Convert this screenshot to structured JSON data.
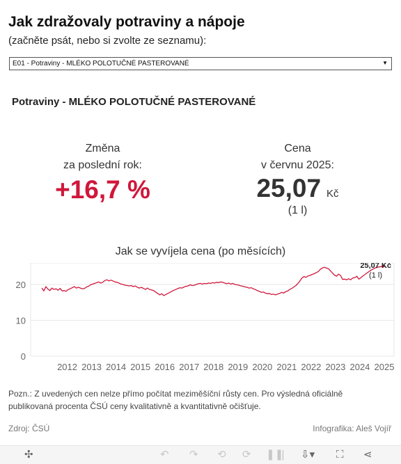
{
  "header": {
    "title": "Jak zdražovaly potraviny a nápoje",
    "subtitle": "(začněte psát, nebo si zvolte ze seznamu):"
  },
  "selector": {
    "value": "E01 - Potraviny - MLÉKO POLOTUČNÉ PASTEROVANÉ",
    "icon": "dropdown-arrow-icon"
  },
  "item_title": "Potraviny - MLÉKO POLOTUČNÉ PASTEROVANÉ",
  "kpi": {
    "change_label_1": "Změna",
    "change_label_2": "za poslední rok:",
    "change_value": "+16,7 %",
    "price_label_1": "Cena",
    "price_label_2": "v červnu 2025:",
    "price_value": "25,07",
    "price_unit": "Kč",
    "price_qty": "(1 l)"
  },
  "colors": {
    "accent": "#d0173b",
    "line": "#d0173b",
    "grid": "#e8e8e8"
  },
  "chart_title": "Jak se vyvíjela cena (po měsících)",
  "chart_data": {
    "type": "line",
    "title": "Jak se vyvíjela cena (po měsících)",
    "xlabel": "",
    "ylabel": "",
    "x_ticks": [
      "2012",
      "2013",
      "2014",
      "2015",
      "2016",
      "2017",
      "2018",
      "2019",
      "2020",
      "2021",
      "2022",
      "2023",
      "2024",
      "2025"
    ],
    "y_ticks": [
      0,
      10,
      20
    ],
    "ylim": [
      0,
      26
    ],
    "grid": "horizontal",
    "series": [
      {
        "points": [
          [
            "2011-06",
            19.0
          ],
          [
            "2011-07",
            18.2
          ],
          [
            "2011-08",
            19.4
          ],
          [
            "2011-09",
            18.7
          ],
          [
            "2011-10",
            18.3
          ],
          [
            "2011-11",
            19.0
          ],
          [
            "2011-12",
            18.6
          ],
          [
            "2012-01",
            18.8
          ],
          [
            "2012-02",
            18.4
          ],
          [
            "2012-03",
            18.9
          ],
          [
            "2012-04",
            18.2
          ],
          [
            "2012-05",
            18.3
          ],
          [
            "2012-06",
            18.1
          ],
          [
            "2012-07",
            18.6
          ],
          [
            "2012-08",
            18.8
          ],
          [
            "2012-09",
            19.1
          ],
          [
            "2012-10",
            19.4
          ],
          [
            "2012-11",
            19.0
          ],
          [
            "2012-12",
            19.2
          ],
          [
            "2013-01",
            19.0
          ],
          [
            "2013-02",
            18.8
          ],
          [
            "2013-03",
            18.9
          ],
          [
            "2013-04",
            19.3
          ],
          [
            "2013-05",
            19.5
          ],
          [
            "2013-06",
            19.9
          ],
          [
            "2013-07",
            20.1
          ],
          [
            "2013-08",
            20.3
          ],
          [
            "2013-09",
            20.5
          ],
          [
            "2013-10",
            20.7
          ],
          [
            "2013-11",
            20.4
          ],
          [
            "2013-12",
            20.6
          ],
          [
            "2014-01",
            21.1
          ],
          [
            "2014-02",
            21.3
          ],
          [
            "2014-03",
            21.0
          ],
          [
            "2014-04",
            21.2
          ],
          [
            "2014-05",
            21.0
          ],
          [
            "2014-06",
            20.7
          ],
          [
            "2014-07",
            20.6
          ],
          [
            "2014-08",
            20.4
          ],
          [
            "2014-09",
            20.1
          ],
          [
            "2014-10",
            20.0
          ],
          [
            "2014-11",
            19.8
          ],
          [
            "2014-12",
            19.7
          ],
          [
            "2015-01",
            19.6
          ],
          [
            "2015-02",
            19.7
          ],
          [
            "2015-03",
            19.4
          ],
          [
            "2015-04",
            19.6
          ],
          [
            "2015-05",
            19.2
          ],
          [
            "2015-06",
            19.0
          ],
          [
            "2015-07",
            19.2
          ],
          [
            "2015-08",
            18.9
          ],
          [
            "2015-09",
            18.6
          ],
          [
            "2015-10",
            19.0
          ],
          [
            "2015-11",
            18.6
          ],
          [
            "2015-12",
            18.5
          ],
          [
            "2016-01",
            18.3
          ],
          [
            "2016-02",
            17.9
          ],
          [
            "2016-03",
            17.5
          ],
          [
            "2016-04",
            17.1
          ],
          [
            "2016-05",
            17.4
          ],
          [
            "2016-06",
            16.9
          ],
          [
            "2016-07",
            17.2
          ],
          [
            "2016-08",
            17.5
          ],
          [
            "2016-09",
            17.8
          ],
          [
            "2016-10",
            18.1
          ],
          [
            "2016-11",
            18.4
          ],
          [
            "2016-12",
            18.6
          ],
          [
            "2017-01",
            18.9
          ],
          [
            "2017-02",
            19.1
          ],
          [
            "2017-03",
            19.0
          ],
          [
            "2017-04",
            19.3
          ],
          [
            "2017-05",
            19.5
          ],
          [
            "2017-06",
            19.6
          ],
          [
            "2017-07",
            19.9
          ],
          [
            "2017-08",
            19.7
          ],
          [
            "2017-09",
            19.8
          ],
          [
            "2017-10",
            20.0
          ],
          [
            "2017-11",
            20.2
          ],
          [
            "2017-12",
            20.3
          ],
          [
            "2018-01",
            20.1
          ],
          [
            "2018-02",
            20.3
          ],
          [
            "2018-03",
            20.2
          ],
          [
            "2018-04",
            20.4
          ],
          [
            "2018-05",
            20.3
          ],
          [
            "2018-06",
            20.5
          ],
          [
            "2018-07",
            20.4
          ],
          [
            "2018-08",
            20.6
          ],
          [
            "2018-09",
            20.5
          ],
          [
            "2018-10",
            20.7
          ],
          [
            "2018-11",
            20.6
          ],
          [
            "2018-12",
            20.4
          ],
          [
            "2019-01",
            20.2
          ],
          [
            "2019-02",
            20.4
          ],
          [
            "2019-03",
            20.1
          ],
          [
            "2019-04",
            20.3
          ],
          [
            "2019-05",
            20.0
          ],
          [
            "2019-06",
            19.9
          ],
          [
            "2019-07",
            19.8
          ],
          [
            "2019-08",
            19.6
          ],
          [
            "2019-09",
            19.5
          ],
          [
            "2019-10",
            19.3
          ],
          [
            "2019-11",
            19.2
          ],
          [
            "2019-12",
            19.0
          ],
          [
            "2020-01",
            19.1
          ],
          [
            "2020-02",
            18.8
          ],
          [
            "2020-03",
            18.6
          ],
          [
            "2020-04",
            18.3
          ],
          [
            "2020-05",
            18.1
          ],
          [
            "2020-06",
            17.8
          ],
          [
            "2020-07",
            17.9
          ],
          [
            "2020-08",
            17.6
          ],
          [
            "2020-09",
            17.4
          ],
          [
            "2020-10",
            17.5
          ],
          [
            "2020-11",
            17.2
          ],
          [
            "2020-12",
            17.3
          ],
          [
            "2021-01",
            17.1
          ],
          [
            "2021-02",
            17.3
          ],
          [
            "2021-03",
            17.5
          ],
          [
            "2021-04",
            17.8
          ],
          [
            "2021-05",
            17.6
          ],
          [
            "2021-06",
            18.0
          ],
          [
            "2021-07",
            18.2
          ],
          [
            "2021-08",
            18.6
          ],
          [
            "2021-09",
            18.9
          ],
          [
            "2021-10",
            19.3
          ],
          [
            "2021-11",
            19.7
          ],
          [
            "2021-12",
            20.3
          ],
          [
            "2022-01",
            21.0
          ],
          [
            "2022-02",
            21.8
          ],
          [
            "2022-03",
            22.2
          ],
          [
            "2022-04",
            22.0
          ],
          [
            "2022-05",
            22.4
          ],
          [
            "2022-06",
            22.5
          ],
          [
            "2022-07",
            22.8
          ],
          [
            "2022-08",
            23.0
          ],
          [
            "2022-09",
            23.3
          ],
          [
            "2022-10",
            23.6
          ],
          [
            "2022-11",
            24.2
          ],
          [
            "2022-12",
            24.6
          ],
          [
            "2023-01",
            24.8
          ],
          [
            "2023-02",
            24.6
          ],
          [
            "2023-03",
            24.4
          ],
          [
            "2023-04",
            23.8
          ],
          [
            "2023-05",
            23.2
          ],
          [
            "2023-06",
            22.6
          ],
          [
            "2023-07",
            22.3
          ],
          [
            "2023-08",
            22.9
          ],
          [
            "2023-09",
            22.5
          ],
          [
            "2023-10",
            21.4
          ],
          [
            "2023-11",
            21.5
          ],
          [
            "2023-12",
            21.3
          ],
          [
            "2024-01",
            21.6
          ],
          [
            "2024-02",
            21.3
          ],
          [
            "2024-03",
            21.8
          ],
          [
            "2024-04",
            21.9
          ],
          [
            "2024-05",
            22.3
          ],
          [
            "2024-06",
            21.5
          ],
          [
            "2024-07",
            21.9
          ],
          [
            "2024-08",
            22.4
          ],
          [
            "2024-09",
            22.8
          ],
          [
            "2024-10",
            23.2
          ],
          [
            "2024-11",
            23.6
          ],
          [
            "2024-12",
            24.0
          ],
          [
            "2025-01",
            24.3
          ],
          [
            "2025-02",
            24.6
          ],
          [
            "2025-03",
            24.8
          ],
          [
            "2025-04",
            24.9
          ],
          [
            "2025-05",
            25.0
          ],
          [
            "2025-06",
            25.07
          ]
        ]
      }
    ],
    "annotation": {
      "label": "25,07 Kč",
      "sublabel": "(1 l)"
    }
  },
  "note": "Pozn.: Z uvedených cen nelze přímo počítat meziměšíční růsty cen. Pro výsledná oficiálně publikovaná procenta ČSÚ ceny kvalitativně a kvantitativně očišťuje.",
  "source": "Zdroj: ČSÚ",
  "credit": "Infografika: Aleš Vojíř",
  "toolbar": {
    "icons": [
      "tableau-logo-icon",
      "undo-icon",
      "redo-icon",
      "revert-icon",
      "pause-icon",
      "download-icon",
      "fullscreen-icon",
      "share-icon"
    ]
  }
}
